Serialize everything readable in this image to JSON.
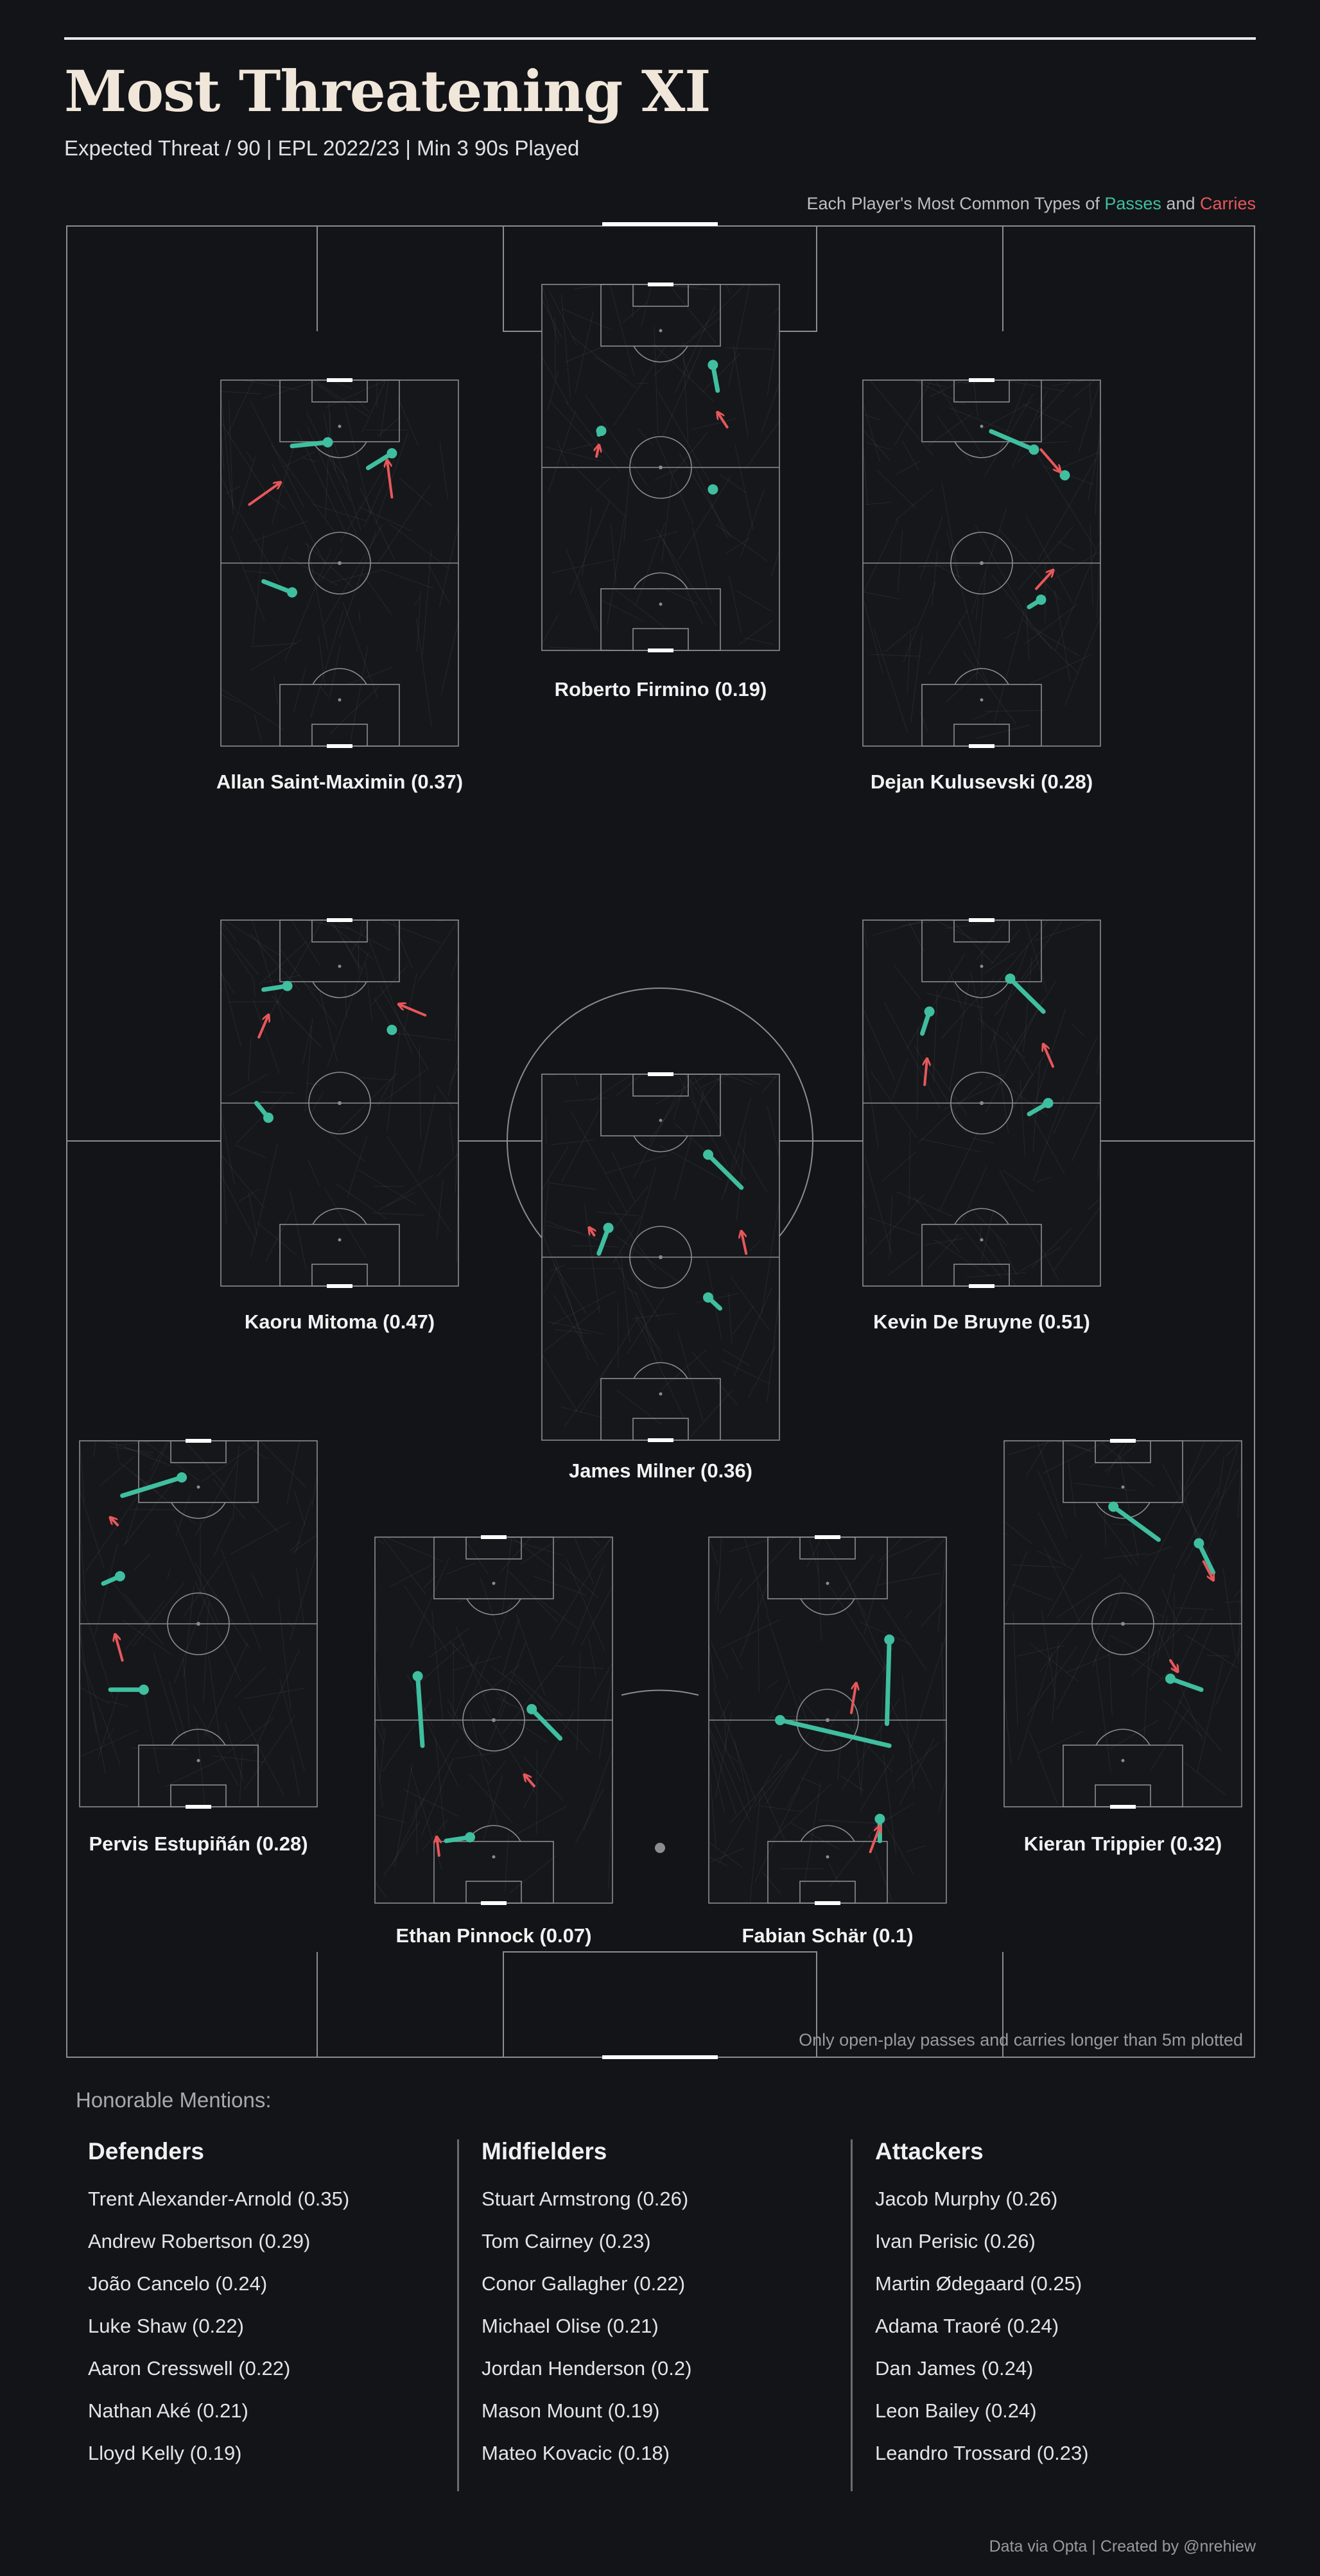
{
  "header": {
    "title": "Most Threatening XI",
    "subtitle": "Expected Threat / 90  |  EPL 2022/23  |  Min 3 90s Played",
    "legend_prefix": "Each Player's Most Common Types of ",
    "legend_passes": "Passes",
    "legend_and": " and ",
    "legend_carries": "Carries"
  },
  "colors": {
    "background": "#121418",
    "pass": "#3fbf9f",
    "carry": "#e8575a",
    "pitch_line": "#8a8c90",
    "title": "#f1e6da"
  },
  "chart_data": {
    "type": "pitch-lineup",
    "metric": "Expected Threat / 90",
    "players": [
      {
        "name": "Allan Saint-Maximin",
        "value": 0.37,
        "label": "Allan Saint-Maximin (0.37)",
        "passes": [
          [
            0.3,
            0.18,
            0.45,
            0.17
          ],
          [
            0.62,
            0.24,
            0.72,
            0.2
          ],
          [
            0.18,
            0.55,
            0.3,
            0.58
          ]
        ],
        "carries": [
          [
            0.12,
            0.34,
            0.25,
            0.28
          ],
          [
            0.72,
            0.32,
            0.7,
            0.22
          ]
        ]
      },
      {
        "name": "Roberto Firmino",
        "value": 0.19,
        "label": "Roberto Firmino (0.19)",
        "passes": [
          [
            0.74,
            0.29,
            0.72,
            0.22
          ],
          [
            0.24,
            0.41,
            0.25,
            0.4
          ],
          [
            0.72,
            0.56,
            0.72,
            0.56
          ]
        ],
        "carries": [
          [
            0.78,
            0.39,
            0.74,
            0.35
          ],
          [
            0.23,
            0.47,
            0.24,
            0.44
          ]
        ]
      },
      {
        "name": "Dejan Kulusevski",
        "value": 0.28,
        "label": "Dejan Kulusevski (0.28)",
        "passes": [
          [
            0.54,
            0.14,
            0.72,
            0.19
          ],
          [
            0.85,
            0.26,
            0.85,
            0.26
          ],
          [
            0.7,
            0.62,
            0.75,
            0.6
          ]
        ],
        "carries": [
          [
            0.75,
            0.19,
            0.83,
            0.25
          ],
          [
            0.73,
            0.57,
            0.8,
            0.52
          ]
        ]
      },
      {
        "name": "Kaoru Mitoma",
        "value": 0.47,
        "label": "Kaoru Mitoma (0.47)",
        "passes": [
          [
            0.18,
            0.19,
            0.28,
            0.18
          ],
          [
            0.72,
            0.3,
            0.72,
            0.3
          ],
          [
            0.15,
            0.5,
            0.2,
            0.54
          ]
        ],
        "carries": [
          [
            0.16,
            0.32,
            0.2,
            0.26
          ],
          [
            0.86,
            0.26,
            0.75,
            0.23
          ]
        ]
      },
      {
        "name": "James Milner",
        "value": 0.36,
        "label": "James Milner (0.36)",
        "passes": [
          [
            0.84,
            0.31,
            0.7,
            0.22
          ],
          [
            0.24,
            0.49,
            0.28,
            0.42
          ],
          [
            0.75,
            0.64,
            0.7,
            0.61
          ]
        ],
        "carries": [
          [
            0.22,
            0.44,
            0.2,
            0.42
          ],
          [
            0.86,
            0.49,
            0.84,
            0.43
          ]
        ]
      },
      {
        "name": "Kevin De Bruyne",
        "value": 0.51,
        "label": "Kevin De Bruyne (0.51)",
        "passes": [
          [
            0.76,
            0.25,
            0.62,
            0.16
          ],
          [
            0.25,
            0.31,
            0.28,
            0.25
          ],
          [
            0.7,
            0.53,
            0.78,
            0.5
          ]
        ],
        "carries": [
          [
            0.26,
            0.45,
            0.27,
            0.38
          ],
          [
            0.8,
            0.4,
            0.76,
            0.34
          ]
        ]
      },
      {
        "name": "Pervis Estupiñán",
        "value": 0.28,
        "label": "Pervis Estupiñán (0.28)",
        "passes": [
          [
            0.18,
            0.15,
            0.43,
            0.1
          ],
          [
            0.1,
            0.39,
            0.17,
            0.37
          ],
          [
            0.13,
            0.68,
            0.27,
            0.68
          ]
        ],
        "carries": [
          [
            0.16,
            0.23,
            0.13,
            0.21
          ],
          [
            0.18,
            0.6,
            0.15,
            0.53
          ]
        ]
      },
      {
        "name": "Ethan Pinnock",
        "value": 0.07,
        "label": "Ethan Pinnock (0.07)",
        "passes": [
          [
            0.2,
            0.57,
            0.18,
            0.38
          ],
          [
            0.78,
            0.55,
            0.66,
            0.47
          ],
          [
            0.3,
            0.83,
            0.4,
            0.82
          ]
        ],
        "carries": [
          [
            0.67,
            0.68,
            0.63,
            0.65
          ],
          [
            0.27,
            0.87,
            0.26,
            0.82
          ]
        ]
      },
      {
        "name": "Fabian Schär",
        "value": 0.1,
        "label": "Fabian Schär (0.1)",
        "passes": [
          [
            0.76,
            0.57,
            0.3,
            0.5
          ],
          [
            0.75,
            0.51,
            0.76,
            0.28
          ],
          [
            0.72,
            0.83,
            0.72,
            0.77
          ]
        ],
        "carries": [
          [
            0.6,
            0.48,
            0.62,
            0.4
          ],
          [
            0.68,
            0.86,
            0.72,
            0.79
          ]
        ]
      },
      {
        "name": "Kieran Trippier",
        "value": 0.32,
        "label": "Kieran Trippier (0.32)",
        "passes": [
          [
            0.65,
            0.27,
            0.46,
            0.18
          ],
          [
            0.88,
            0.36,
            0.82,
            0.28
          ],
          [
            0.83,
            0.68,
            0.7,
            0.65
          ]
        ],
        "carries": [
          [
            0.84,
            0.33,
            0.88,
            0.38
          ],
          [
            0.7,
            0.6,
            0.73,
            0.63
          ]
        ]
      }
    ]
  },
  "footnote": "Only open-play passes and carries longer than 5m plotted",
  "honorable": {
    "title": "Honorable Mentions:",
    "columns": [
      {
        "heading": "Defenders",
        "items": [
          "Trent Alexander-Arnold (0.35)",
          "Andrew Robertson (0.29)",
          "João Cancelo (0.24)",
          "Luke Shaw (0.22)",
          "Aaron Cresswell (0.22)",
          "Nathan Aké (0.21)",
          "Lloyd Kelly (0.19)"
        ]
      },
      {
        "heading": "Midfielders",
        "items": [
          "Stuart Armstrong (0.26)",
          "Tom Cairney (0.23)",
          "Conor Gallagher (0.22)",
          "Michael Olise (0.21)",
          "Jordan Henderson (0.2)",
          "Mason Mount (0.19)",
          "Mateo Kovacic (0.18)"
        ]
      },
      {
        "heading": "Attackers",
        "items": [
          "Jacob Murphy (0.26)",
          "Ivan Perisic (0.26)",
          "Martin Ødegaard (0.25)",
          "Adama Traoré (0.24)",
          "Dan James (0.24)",
          "Leon Bailey (0.24)",
          "Leandro Trossard (0.23)"
        ]
      }
    ]
  },
  "credit": "Data via Opta | Created by @nrehiew"
}
